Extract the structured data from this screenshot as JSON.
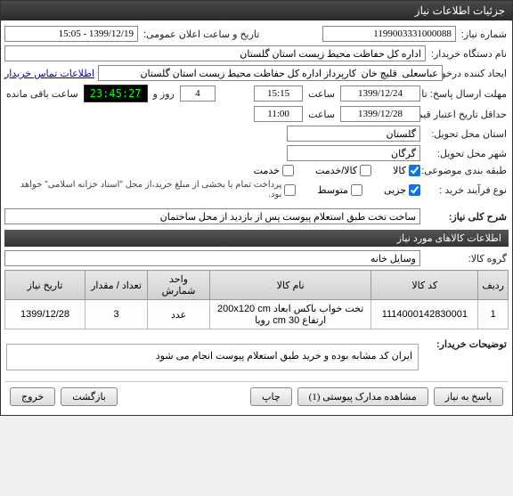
{
  "window": {
    "title": "جزئیات اطلاعات نیاز"
  },
  "fields": {
    "niaz_number_label": "شماره نیاز:",
    "niaz_number": "1199003331000088",
    "public_date_label": "تاریخ و ساعت اعلان عمومی:",
    "public_date": "1399/12/19 - 15:05",
    "buyer_org_label": "نام دستگاه خریدار:",
    "buyer_org": "اداره کل حفاظت محیط زیست استان گلستان",
    "creator_label": "ایجاد کننده درخواست:",
    "creator": "عباسعلی  قلیچ خان  کارپرداز اداره کل حفاظت محیط زیست استان گلستان",
    "contact_link": "اطلاعات تماس خریدار",
    "deadline_label": "مهلت ارسال پاسخ: تا تاریخ:",
    "deadline_date": "1399/12/24",
    "time_label": "ساعت",
    "deadline_time": "15:15",
    "day_label": "روز و",
    "days_remaining": "4",
    "timer": "23:45:27",
    "timer_suffix": "ساعت باقی مانده",
    "validity_label": "حداقل تاریخ اعتبار قیمت: تا تاریخ:",
    "validity_date": "1399/12/28",
    "validity_time": "11:00",
    "province_label": "استان محل تحویل:",
    "province": "گلستان",
    "city_label": "شهر محل تحویل:",
    "city": "گرگان",
    "category_label": "طبقه بندی موضوعی:",
    "cat_kala": "کالا",
    "cat_service": "کالا/خدمت",
    "cat_khadmat": "خدمت",
    "process_label": "نوع فرآیند خرید :",
    "proc_small": "جزیی",
    "proc_medium": "متوسط",
    "process_note": "پرداخت تمام یا بخشی از مبلغ خرید،از محل \"اسناد خزانه اسلامی\" خواهد بود.",
    "summary_label": "شرح کلی نیاز:",
    "summary": "ساخت تخت طبق استعلام پیوست پس از بازدید از محل ساختمان",
    "section_items": "اطلاعات کالاهای مورد نیاز",
    "group_label": "گروه کالا:",
    "group": "وسایل خانه",
    "buyer_desc_label": "توضیحات خریدار:",
    "buyer_desc": "ایران کد مشابه بوده و خرید طبق استعلام پیوست انجام می شود"
  },
  "checkboxes": {
    "kala": true,
    "service": false,
    "khadmat": false,
    "small": true,
    "medium": false,
    "treasury": false
  },
  "table": {
    "headers": {
      "row": "ردیف",
      "code": "کد کالا",
      "name": "نام کالا",
      "unit": "واحد شمارش",
      "qty": "تعداد / مقدار",
      "date": "تاریخ نیاز"
    },
    "rows": [
      {
        "row": "1",
        "code": "1114000142830001",
        "name": "تخت خواب باکس ابعاد 200x120 cm ارتفاع 30 cm رویا",
        "unit": "عدد",
        "qty": "3",
        "date": "1399/12/28"
      }
    ]
  },
  "buttons": {
    "reply": "پاسخ به نیاز",
    "attachments": "مشاهده مدارک پیوستی (1)",
    "print": "چاپ",
    "back": "بازگشت",
    "exit": "خروج"
  }
}
